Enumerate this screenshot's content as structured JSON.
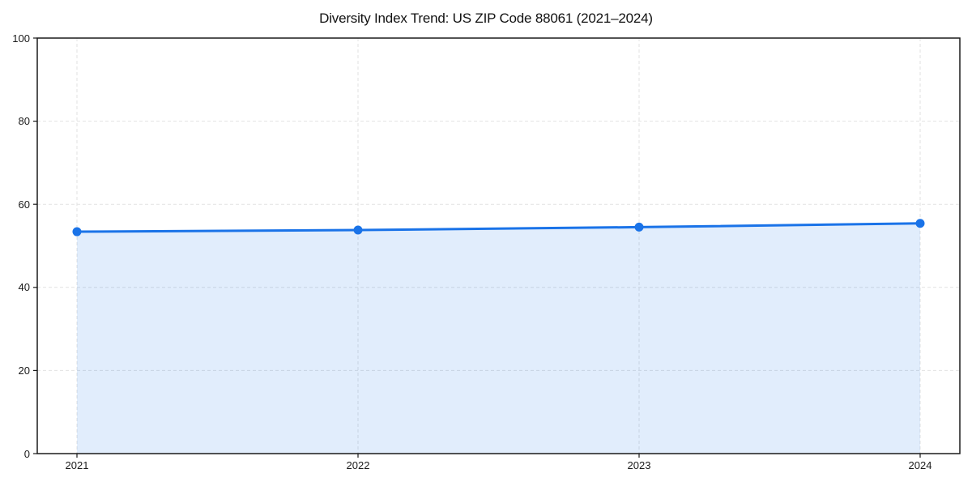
{
  "chart_data": {
    "type": "line",
    "title": "Diversity Index Trend: US ZIP Code 88061 (2021–2024)",
    "categories": [
      "2021",
      "2022",
      "2023",
      "2024"
    ],
    "series": [
      {
        "name": "Diversity Index",
        "values": [
          53.4,
          53.8,
          54.5,
          55.4
        ]
      }
    ],
    "xlabel": "",
    "ylabel": "",
    "ylim": [
      0,
      100
    ],
    "yticks": [
      0,
      20,
      40,
      60,
      80,
      100
    ],
    "grid": true,
    "grid_style": "dashed",
    "legend_position": "none",
    "marker": "circle",
    "area_fill": true,
    "fill_opacity": 0.13,
    "colors": {
      "line": "#1a73e8",
      "grid": "#e2e2e2",
      "spine": "#1a1a1a",
      "text": "#1a1a1a",
      "background": "#ffffff"
    }
  }
}
